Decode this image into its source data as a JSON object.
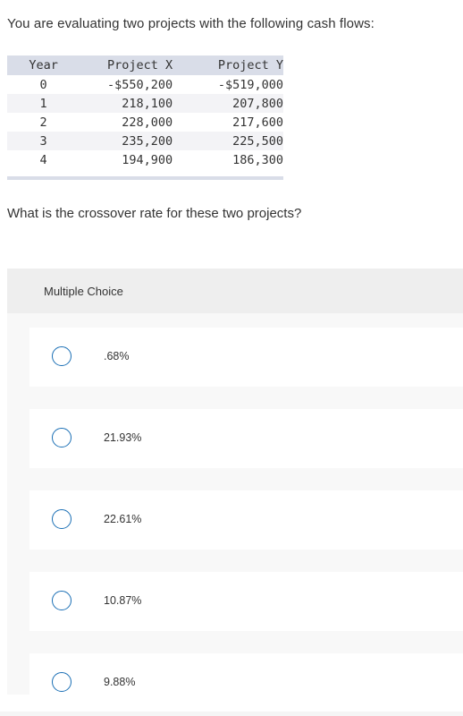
{
  "question": {
    "intro": "You are evaluating two projects with the following cash flows:",
    "prompt": "What is the crossover rate for these two projects?"
  },
  "table": {
    "headers": [
      "Year",
      "Project X",
      "Project Y"
    ],
    "rows": [
      [
        "0",
        "-$550,200",
        "-$519,000"
      ],
      [
        "1",
        "218,100",
        "207,800"
      ],
      [
        "2",
        "228,000",
        "217,600"
      ],
      [
        "3",
        "235,200",
        "225,500"
      ],
      [
        "4",
        "194,900",
        "186,300"
      ]
    ]
  },
  "multiple_choice": {
    "label": "Multiple Choice",
    "options": [
      {
        "label": ".68%"
      },
      {
        "label": "21.93%"
      },
      {
        "label": "22.61%"
      },
      {
        "label": "10.87%"
      },
      {
        "label": "9.88%"
      }
    ]
  },
  "colors": {
    "radio_border": "#1a6fb5",
    "table_header_bg": "#d9dde8",
    "panel_bg": "#f8f8f8",
    "panel_header_bg": "#eeeeee"
  }
}
